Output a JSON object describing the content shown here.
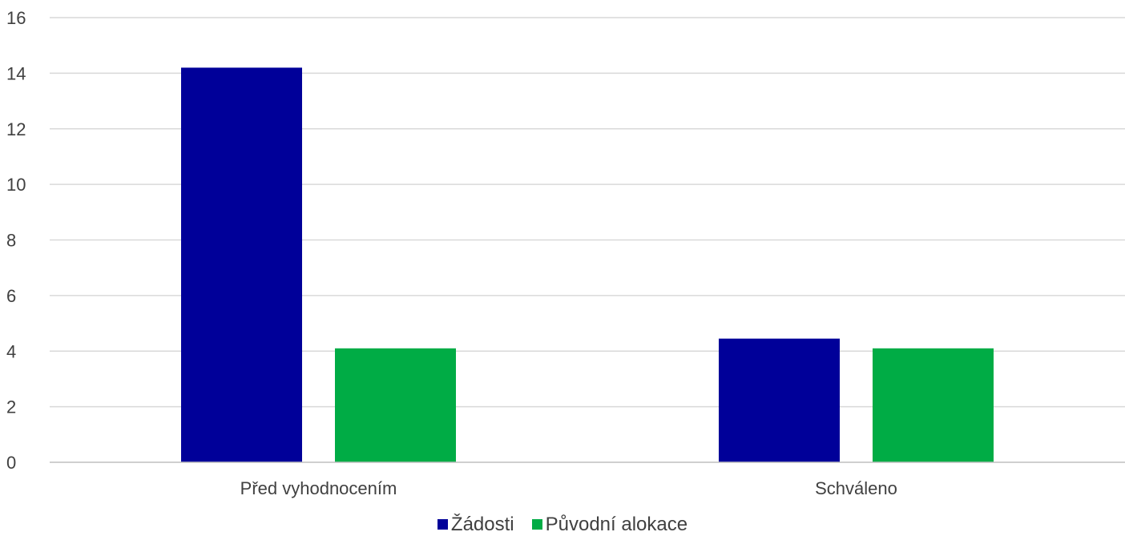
{
  "chart_data": {
    "type": "bar",
    "title": "",
    "xlabel": "",
    "ylabel": "",
    "categories": [
      "Před vyhodnocením",
      "Schváleno"
    ],
    "series": [
      {
        "name": "Žádosti",
        "color": "#000099",
        "values": [
          14.2,
          4.45
        ]
      },
      {
        "name": "Původní alokace",
        "color": "#00AC45",
        "values": [
          4.1,
          4.1
        ]
      }
    ],
    "ylim": [
      0,
      16
    ],
    "yticks": [
      0,
      2,
      4,
      6,
      8,
      10,
      12,
      14,
      16
    ],
    "grid": true,
    "legend_position": "bottom"
  }
}
